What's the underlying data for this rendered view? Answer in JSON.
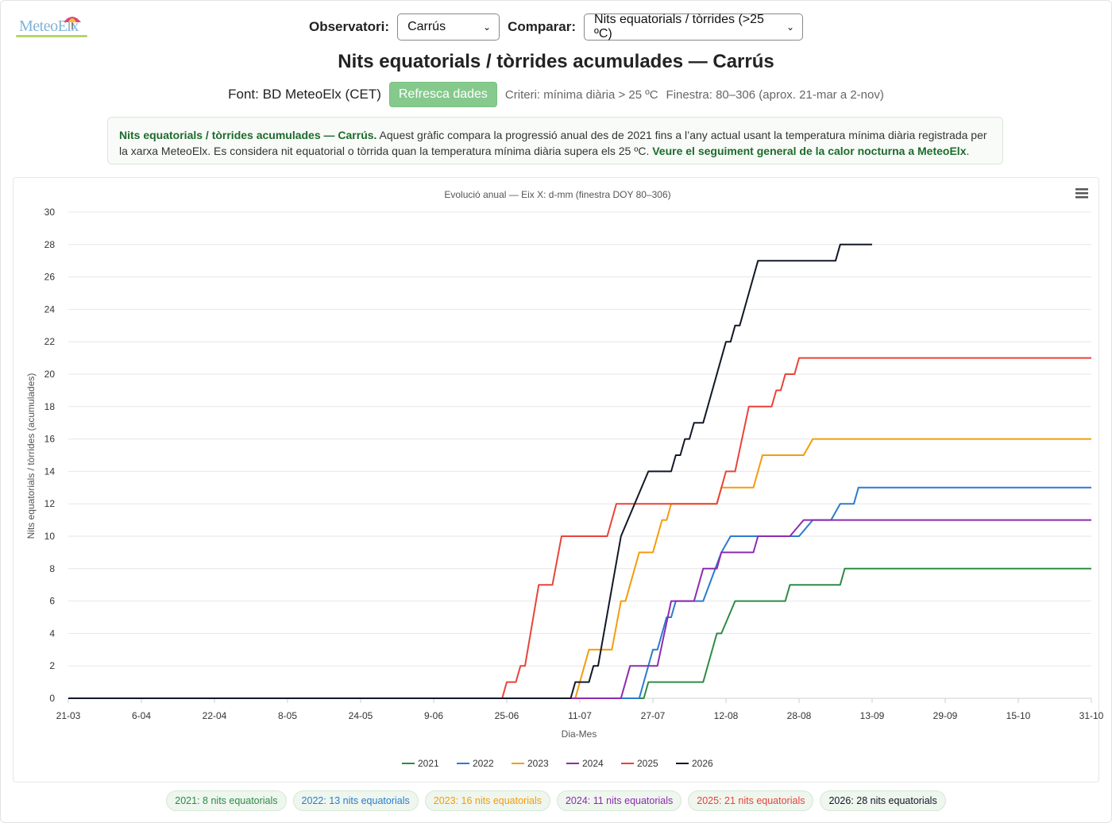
{
  "header": {
    "observatori_label": "Observatori:",
    "observatori_value": "Carrús",
    "comparar_label": "Comparar:",
    "comparar_value": "Nits equatorials / tòrrides (>25 ºC)",
    "logo_text": "MeteoElx"
  },
  "title": "Nits equatorials / tòrrides acumulades — Carrús",
  "info": {
    "source": "Font: BD MeteoElx (CET)",
    "refresh_button": "Refresca dades",
    "criterion": "Criteri: mínima diària > 25 ºC",
    "window": "Finestra: 80–306 (aprox. 21-mar a 2-nov)"
  },
  "note": {
    "bold": "Nits equatorials / tòrrides acumulades — Carrús.",
    "text": " Aquest gràfic compara la progressió anual des de 2021 fins a l’any actual usant la temperatura mínima diària registrada per la xarxa MeteoElx. Es considera nit equatorial o tòrrida quan la temperatura mínima diària supera els 25 ºC. ",
    "link": "Veure el seguiment general de la calor nocturna a MeteoElx",
    "tail": "."
  },
  "badges": [
    {
      "text": "2021: 8 nits equatorials",
      "color": "#2e8b46"
    },
    {
      "text": "2022: 13 nits equatorials",
      "color": "#2a7bd0"
    },
    {
      "text": "2023: 16 nits equatorials",
      "color": "#f59b0b"
    },
    {
      "text": "2024: 11 nits equatorials",
      "color": "#8e2bb0"
    },
    {
      "text": "2025: 21 nits equatorials",
      "color": "#e8433a"
    },
    {
      "text": "2026: 28 nits equatorials",
      "color": "#111827"
    }
  ],
  "chart_data": {
    "type": "line",
    "title": "Evolució anual — Eix X: d-mm (finestra DOY 80–306)",
    "xlabel": "Dia-Mes",
    "ylabel": "Nits equatorials / tòrrides (acumulades)",
    "xlim": [
      80,
      304
    ],
    "ylim": [
      0,
      30
    ],
    "yticks": [
      0,
      2,
      4,
      6,
      8,
      10,
      12,
      14,
      16,
      18,
      20,
      22,
      24,
      26,
      28,
      30
    ],
    "xticks": [
      {
        "doy": 80,
        "label": "21-03"
      },
      {
        "doy": 96,
        "label": "6-04"
      },
      {
        "doy": 112,
        "label": "22-04"
      },
      {
        "doy": 128,
        "label": "8-05"
      },
      {
        "doy": 144,
        "label": "24-05"
      },
      {
        "doy": 160,
        "label": "9-06"
      },
      {
        "doy": 176,
        "label": "25-06"
      },
      {
        "doy": 192,
        "label": "11-07"
      },
      {
        "doy": 208,
        "label": "27-07"
      },
      {
        "doy": 224,
        "label": "12-08"
      },
      {
        "doy": 240,
        "label": "28-08"
      },
      {
        "doy": 256,
        "label": "13-09"
      },
      {
        "doy": 272,
        "label": "29-09"
      },
      {
        "doy": 288,
        "label": "15-10"
      },
      {
        "doy": 304,
        "label": "31-10"
      }
    ],
    "grid": true,
    "legend_position": "bottom",
    "series": [
      {
        "name": "2021",
        "color": "#2e8b46",
        "points": [
          [
            80,
            0
          ],
          [
            206,
            0
          ],
          [
            207,
            1
          ],
          [
            219,
            1
          ],
          [
            222,
            4
          ],
          [
            223,
            4
          ],
          [
            226,
            6
          ],
          [
            237,
            6
          ],
          [
            238,
            7
          ],
          [
            249,
            7
          ],
          [
            250,
            8
          ],
          [
            304,
            8
          ]
        ]
      },
      {
        "name": "2022",
        "color": "#2a7bd0",
        "points": [
          [
            80,
            0
          ],
          [
            205,
            0
          ],
          [
            208,
            3
          ],
          [
            209,
            3
          ],
          [
            211,
            5
          ],
          [
            212,
            5
          ],
          [
            213,
            6
          ],
          [
            219,
            6
          ],
          [
            223,
            9
          ],
          [
            225,
            10
          ],
          [
            231,
            10
          ],
          [
            240,
            10
          ],
          [
            243,
            11
          ],
          [
            247,
            11
          ],
          [
            249,
            12
          ],
          [
            252,
            12
          ],
          [
            253,
            13
          ],
          [
            304,
            13
          ]
        ]
      },
      {
        "name": "2023",
        "color": "#f59b0b",
        "points": [
          [
            80,
            0
          ],
          [
            191,
            0
          ],
          [
            194,
            3
          ],
          [
            199,
            3
          ],
          [
            201,
            6
          ],
          [
            202,
            6
          ],
          [
            205,
            9
          ],
          [
            208,
            9
          ],
          [
            210,
            11
          ],
          [
            211,
            11
          ],
          [
            212,
            12
          ],
          [
            222,
            12
          ],
          [
            223,
            13
          ],
          [
            230,
            13
          ],
          [
            232,
            15
          ],
          [
            241,
            15
          ],
          [
            243,
            16
          ],
          [
            304,
            16
          ]
        ]
      },
      {
        "name": "2024",
        "color": "#8e2bb0",
        "points": [
          [
            80,
            0
          ],
          [
            201,
            0
          ],
          [
            203,
            2
          ],
          [
            209,
            2
          ],
          [
            212,
            6
          ],
          [
            217,
            6
          ],
          [
            219,
            8
          ],
          [
            222,
            8
          ],
          [
            223,
            9
          ],
          [
            230,
            9
          ],
          [
            231,
            10
          ],
          [
            237,
            10
          ],
          [
            238,
            10
          ],
          [
            241,
            11
          ],
          [
            304,
            11
          ]
        ]
      },
      {
        "name": "2025",
        "color": "#e8433a",
        "points": [
          [
            80,
            0
          ],
          [
            175,
            0
          ],
          [
            176,
            1
          ],
          [
            178,
            1
          ],
          [
            179,
            2
          ],
          [
            180,
            2
          ],
          [
            183,
            7
          ],
          [
            186,
            7
          ],
          [
            188,
            10
          ],
          [
            198,
            10
          ],
          [
            200,
            12
          ],
          [
            222,
            12
          ],
          [
            224,
            14
          ],
          [
            226,
            14
          ],
          [
            229,
            18
          ],
          [
            234,
            18
          ],
          [
            235,
            19
          ],
          [
            236,
            19
          ],
          [
            237,
            20
          ],
          [
            239,
            20
          ],
          [
            240,
            21
          ],
          [
            304,
            21
          ]
        ]
      },
      {
        "name": "2026",
        "color": "#111827",
        "points": [
          [
            80,
            0
          ],
          [
            190,
            0
          ],
          [
            191,
            1
          ],
          [
            194,
            1
          ],
          [
            195,
            2
          ],
          [
            196,
            2
          ],
          [
            201,
            10
          ],
          [
            207,
            14
          ],
          [
            212,
            14
          ],
          [
            213,
            15
          ],
          [
            214,
            15
          ],
          [
            215,
            16
          ],
          [
            216,
            16
          ],
          [
            217,
            17
          ],
          [
            219,
            17
          ],
          [
            224,
            22
          ],
          [
            225,
            22
          ],
          [
            226,
            23
          ],
          [
            227,
            23
          ],
          [
            231,
            27
          ],
          [
            248,
            27
          ],
          [
            249,
            28
          ],
          [
            256,
            28
          ]
        ]
      }
    ]
  }
}
